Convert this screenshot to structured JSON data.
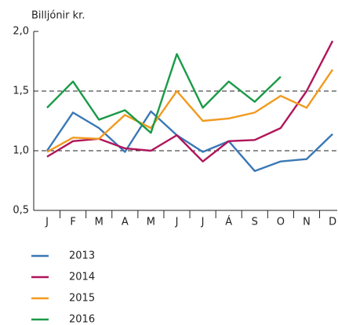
{
  "chart_data": {
    "type": "line",
    "y_axis_label": "Billjónir kr.",
    "categories": [
      "J",
      "F",
      "M",
      "A",
      "M",
      "J",
      "J",
      "Á",
      "S",
      "O",
      "N",
      "D"
    ],
    "series": [
      {
        "name": "2013",
        "color": "#3a78b5",
        "values": [
          1.0,
          1.32,
          1.19,
          0.99,
          1.33,
          1.13,
          0.99,
          1.08,
          0.83,
          0.91,
          0.93,
          1.14
        ]
      },
      {
        "name": "2014",
        "color": "#b0155a",
        "values": [
          0.95,
          1.08,
          1.1,
          1.02,
          1.0,
          1.13,
          0.91,
          1.08,
          1.09,
          1.19,
          1.5,
          1.92
        ]
      },
      {
        "name": "2015",
        "color": "#f29a1f",
        "values": [
          0.99,
          1.11,
          1.1,
          1.3,
          1.19,
          1.5,
          1.25,
          1.27,
          1.32,
          1.46,
          1.36,
          1.68
        ]
      },
      {
        "name": "2016",
        "color": "#1a9a48",
        "values": [
          1.36,
          1.58,
          1.26,
          1.34,
          1.15,
          1.81,
          1.36,
          1.58,
          1.41,
          1.62,
          null,
          null
        ]
      }
    ],
    "ylim": [
      0.5,
      2.0
    ],
    "yticks": [
      {
        "value": 0.5,
        "label": "0,5"
      },
      {
        "value": 1.0,
        "label": "1,0"
      },
      {
        "value": 1.5,
        "label": "1,5"
      },
      {
        "value": 2.0,
        "label": "2,0"
      }
    ],
    "grid": "dashed",
    "legend": "bottom"
  }
}
